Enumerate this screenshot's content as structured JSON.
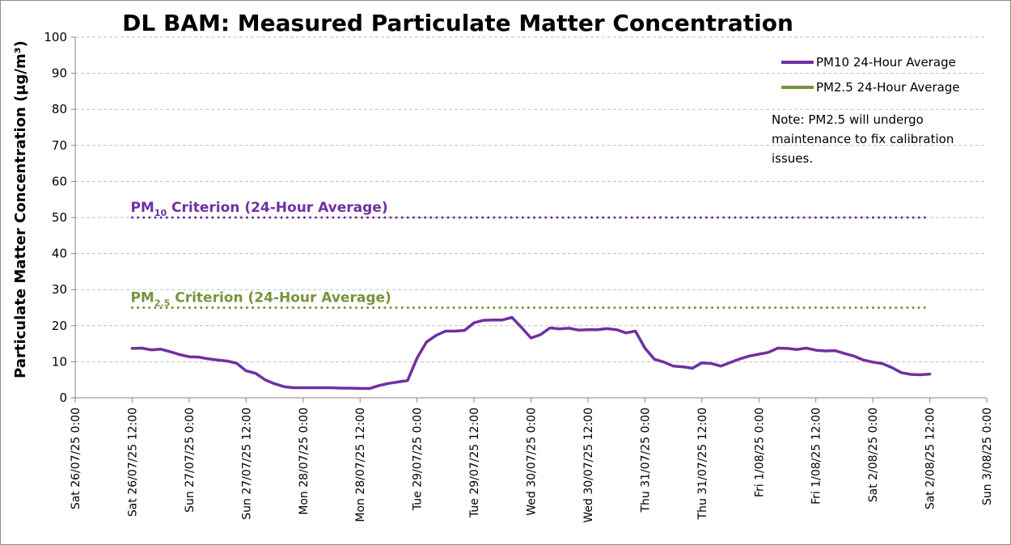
{
  "chart_data": {
    "type": "line",
    "title": "DL BAM: Measured Particulate Matter Concentration",
    "ylabel": "Particulate Matter Concentration (μg/m³)",
    "ylim": [
      0,
      100
    ],
    "yticks": [
      0,
      10,
      20,
      30,
      40,
      50,
      60,
      70,
      80,
      90,
      100
    ],
    "xlim": [
      "2025-07-26 00:00",
      "2025-08-03 00:00"
    ],
    "xtick_labels": [
      "Sat 26/07/25 0:00",
      "Sat 26/07/25 12:00",
      "Sun 27/07/25 0:00",
      "Sun 27/07/25 12:00",
      "Mon 28/07/25 0:00",
      "Mon 28/07/25 12:00",
      "Tue 29/07/25 0:00",
      "Tue 29/07/25 12:00",
      "Wed 30/07/25 0:00",
      "Wed 30/07/25 12:00",
      "Thu 31/07/25 0:00",
      "Thu 31/07/25 12:00",
      "Fri 1/08/25 0:00",
      "Fri 1/08/25 12:00",
      "Sat 2/08/25 0:00",
      "Sat 2/08/25 12:00",
      "Sun 3/08/25 0:00"
    ],
    "grid": "horizontal-dashed",
    "legend_position": "top-right",
    "series": [
      {
        "name": "PM10 24-Hour Average",
        "color": "#7030a0",
        "x": [
          "2025-07-26 12:00",
          "2025-07-26 14:00",
          "2025-07-26 16:00",
          "2025-07-26 18:00",
          "2025-07-26 20:00",
          "2025-07-26 22:00",
          "2025-07-27 00:00",
          "2025-07-27 02:00",
          "2025-07-27 04:00",
          "2025-07-27 06:00",
          "2025-07-27 08:00",
          "2025-07-27 10:00",
          "2025-07-27 12:00",
          "2025-07-27 14:00",
          "2025-07-27 16:00",
          "2025-07-27 18:00",
          "2025-07-27 20:00",
          "2025-07-27 22:00",
          "2025-07-28 00:00",
          "2025-07-28 02:00",
          "2025-07-28 04:00",
          "2025-07-28 06:00",
          "2025-07-28 08:00",
          "2025-07-28 10:00",
          "2025-07-28 12:00",
          "2025-07-28 14:00",
          "2025-07-28 16:00",
          "2025-07-28 18:00",
          "2025-07-28 20:00",
          "2025-07-28 22:00",
          "2025-07-29 00:00",
          "2025-07-29 02:00",
          "2025-07-29 04:00",
          "2025-07-29 06:00",
          "2025-07-29 08:00",
          "2025-07-29 10:00",
          "2025-07-29 12:00",
          "2025-07-29 14:00",
          "2025-07-29 16:00",
          "2025-07-29 18:00",
          "2025-07-29 20:00",
          "2025-07-29 22:00",
          "2025-07-30 00:00",
          "2025-07-30 02:00",
          "2025-07-30 04:00",
          "2025-07-30 06:00",
          "2025-07-30 08:00",
          "2025-07-30 10:00",
          "2025-07-30 12:00",
          "2025-07-30 14:00",
          "2025-07-30 16:00",
          "2025-07-30 18:00",
          "2025-07-30 20:00",
          "2025-07-30 22:00",
          "2025-07-31 00:00",
          "2025-07-31 02:00",
          "2025-07-31 04:00",
          "2025-07-31 06:00",
          "2025-07-31 08:00",
          "2025-07-31 10:00",
          "2025-07-31 12:00",
          "2025-07-31 14:00",
          "2025-07-31 16:00",
          "2025-07-31 18:00",
          "2025-07-31 20:00",
          "2025-07-31 22:00",
          "2025-08-01 00:00",
          "2025-08-01 02:00",
          "2025-08-01 04:00",
          "2025-08-01 06:00",
          "2025-08-01 08:00",
          "2025-08-01 10:00",
          "2025-08-01 12:00",
          "2025-08-01 14:00",
          "2025-08-01 16:00",
          "2025-08-01 18:00",
          "2025-08-01 20:00",
          "2025-08-01 22:00",
          "2025-08-02 00:00",
          "2025-08-02 02:00",
          "2025-08-02 04:00",
          "2025-08-02 06:00",
          "2025-08-02 08:00",
          "2025-08-02 10:00",
          "2025-08-02 12:00"
        ],
        "values": [
          13.7,
          13.8,
          13.3,
          13.5,
          12.8,
          12.0,
          11.4,
          11.3,
          10.8,
          10.5,
          10.2,
          9.6,
          7.5,
          6.8,
          5.0,
          3.9,
          3.1,
          2.8,
          2.8,
          2.8,
          2.8,
          2.8,
          2.7,
          2.7,
          2.6,
          2.6,
          3.4,
          4.0,
          4.4,
          4.8,
          11.0,
          15.5,
          17.3,
          18.5,
          18.5,
          18.7,
          20.8,
          21.5,
          21.6,
          21.6,
          22.3,
          19.5,
          16.6,
          17.5,
          19.4,
          19.1,
          19.3,
          18.8,
          18.9,
          18.9,
          19.2,
          18.9,
          18.0,
          18.5,
          13.8,
          10.7,
          9.9,
          8.8,
          8.6,
          8.2,
          9.7,
          9.5,
          8.8,
          9.8,
          10.8,
          11.6,
          12.1,
          12.6,
          13.8,
          13.7,
          13.4,
          13.8,
          13.2,
          13.0,
          13.1,
          12.3,
          11.6,
          10.5,
          9.9,
          9.5,
          8.4,
          7.0,
          6.5,
          6.4,
          6.6
        ]
      },
      {
        "name": "PM2.5 24-Hour Average",
        "color": "#77933c",
        "x": [],
        "values": []
      }
    ],
    "reference_lines": [
      {
        "label_main": "PM",
        "label_sub": "10",
        "label_rest": " Criterion (24-Hour Average)",
        "y": 50,
        "x_start": "2025-07-26 12:00",
        "x_end": "2025-08-02 12:00",
        "color": "#7030a0"
      },
      {
        "label_main": "PM",
        "label_sub": "2.5",
        "label_rest": " Criterion (24-Hour Average)",
        "y": 25,
        "x_start": "2025-07-26 12:00",
        "x_end": "2025-08-02 12:00",
        "color": "#77933c"
      }
    ],
    "annotations": [
      "Note: PM2.5 will undergo",
      "maintenance to fix calibration",
      "issues."
    ]
  }
}
